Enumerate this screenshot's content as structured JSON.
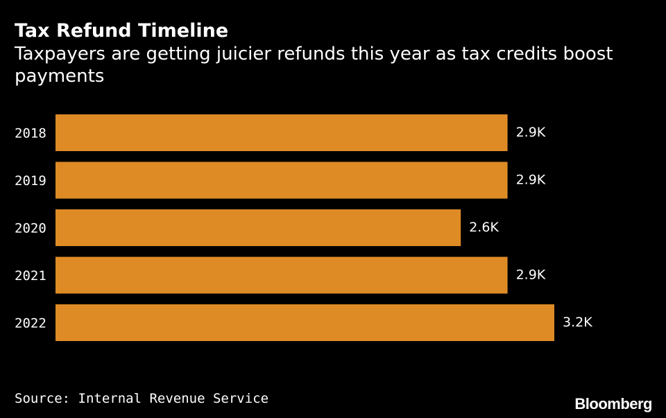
{
  "chart_data": {
    "type": "bar",
    "orientation": "horizontal",
    "title": "Tax Refund Timeline",
    "subtitle": "Taxpayers are getting juicier refunds this year as tax credits boost payments",
    "categories": [
      "2018",
      "2019",
      "2020",
      "2021",
      "2022"
    ],
    "values": [
      2.9,
      2.9,
      2.6,
      2.9,
      3.2
    ],
    "data_labels": [
      "2.9K",
      "2.9K",
      "2.6K",
      "2.9K",
      "3.2K"
    ],
    "xlim": [
      0,
      3.2
    ],
    "grid": false,
    "bar_color": "#de8b26"
  },
  "footer": {
    "source": "Source: Internal Revenue Service",
    "brand": "Bloomberg"
  },
  "colors": {
    "background": "#000000",
    "text": "#ffffff",
    "bar": "#de8b26"
  }
}
